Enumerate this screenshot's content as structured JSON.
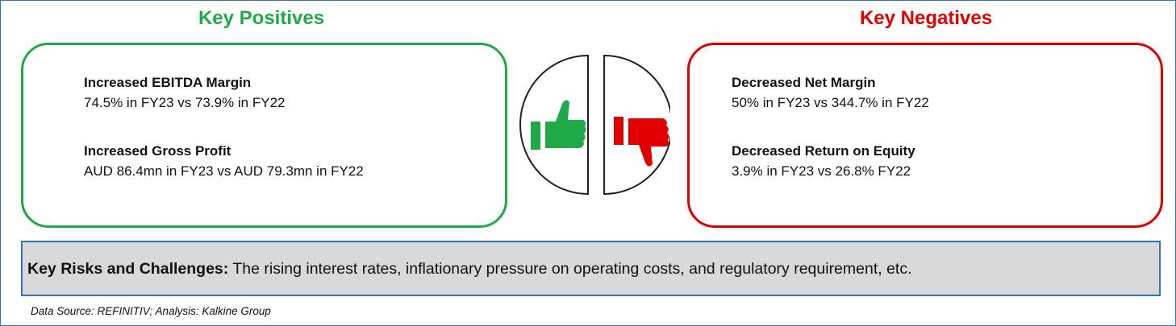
{
  "positives": {
    "title": "Key Positives",
    "items": [
      {
        "heading": "Increased EBITDA Margin",
        "detail": "74.5% in FY23 vs 73.9% in FY22"
      },
      {
        "heading": "Increased Gross Profit",
        "detail": "AUD 86.4mn in FY23 vs AUD 79.3mn in FY22"
      }
    ]
  },
  "negatives": {
    "title": "Key Negatives",
    "items": [
      {
        "heading": "Decreased Net Margin",
        "detail": "50% in FY23 vs 344.7% in FY22"
      },
      {
        "heading": "Decreased Return on Equity",
        "detail": "3.9% in FY23 vs 26.8% FY22"
      }
    ]
  },
  "risks": {
    "label": "Key Risks and Challenges:",
    "text": "The rising interest rates, inflationary pressure on operating costs, and regulatory requirement, etc."
  },
  "source": "Data Source: REFINITIV; Analysis: Kalkine Group"
}
